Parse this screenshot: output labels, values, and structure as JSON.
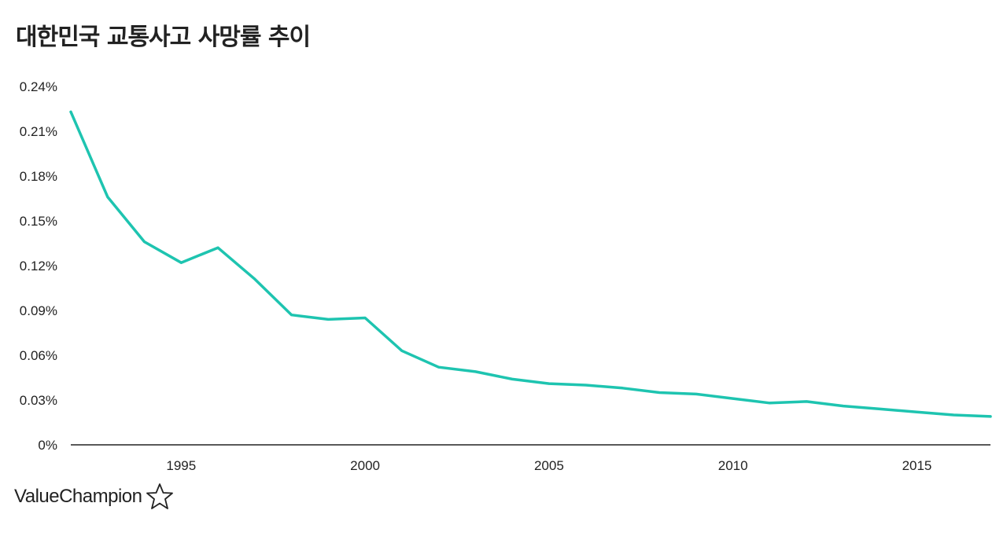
{
  "brand": {
    "name": "ValueChampion",
    "star_icon": "star-outline-icon"
  },
  "chart_data": {
    "type": "line",
    "title": "대한민국 교통사고 사망률 추이",
    "xlabel": "",
    "ylabel": "",
    "x": [
      1992,
      1993,
      1994,
      1995,
      1996,
      1997,
      1998,
      1999,
      2000,
      2001,
      2002,
      2003,
      2004,
      2005,
      2006,
      2007,
      2008,
      2009,
      2010,
      2011,
      2012,
      2013,
      2014,
      2015,
      2016,
      2017
    ],
    "series": [
      {
        "values": [
          0.223,
          0.166,
          0.136,
          0.122,
          0.132,
          0.111,
          0.087,
          0.084,
          0.085,
          0.063,
          0.052,
          0.049,
          0.044,
          0.041,
          0.04,
          0.038,
          0.035,
          0.034,
          0.031,
          0.028,
          0.029,
          0.026,
          0.024,
          0.022,
          0.02,
          0.019
        ],
        "color": "#1ec4b0"
      }
    ],
    "xlim": [
      1992,
      2017
    ],
    "ylim": [
      0,
      0.24
    ],
    "xticks": [
      1995,
      2000,
      2005,
      2010,
      2015
    ],
    "xtick_labels": [
      "1995",
      "2000",
      "2005",
      "2010",
      "2015"
    ],
    "yticks": [
      0,
      0.03,
      0.06,
      0.09,
      0.12,
      0.15,
      0.18,
      0.21,
      0.24
    ],
    "ytick_labels": [
      "0%",
      "0.03%",
      "0.06%",
      "0.09%",
      "0.12%",
      "0.15%",
      "0.18%",
      "0.21%",
      "0.24%"
    ],
    "grid": false,
    "legend": "none",
    "axis_color": "#222222"
  }
}
